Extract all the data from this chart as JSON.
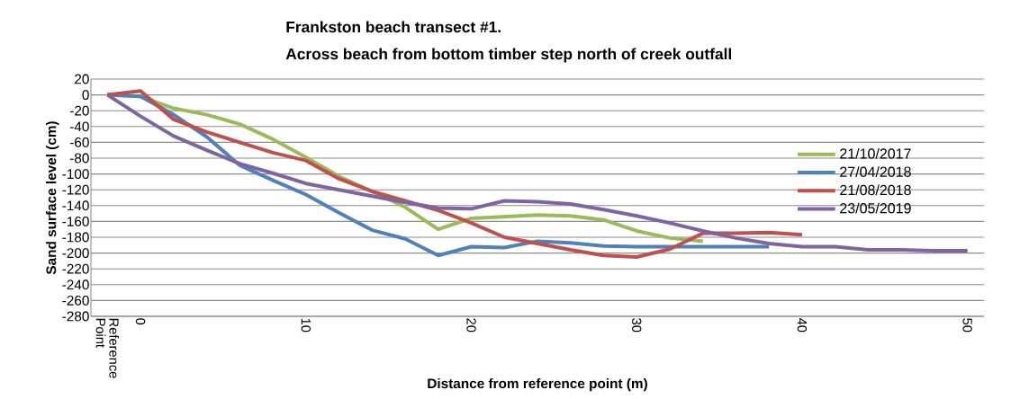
{
  "chart_data": {
    "type": "line",
    "title": "Frankston beach transect #1.",
    "subtitle": "Across beach from bottom timber step north of creek outfall",
    "xlabel": "Distance from reference point (m)",
    "ylabel": "Sand surface level (cm)",
    "categories": [
      "Reference Point",
      "0",
      null,
      null,
      null,
      null,
      "10",
      null,
      null,
      null,
      null,
      "20",
      null,
      null,
      null,
      null,
      "30",
      null,
      null,
      null,
      null,
      "40",
      null,
      null,
      null,
      null,
      "50"
    ],
    "series": [
      {
        "name": "21/10/2017",
        "color": "#9bbb59",
        "values": [
          0,
          -2,
          -17,
          -25,
          -37,
          -56,
          -79,
          -103,
          -122,
          -142,
          -170,
          -156,
          -154,
          -152,
          -153,
          -158,
          -172,
          -181,
          -185,
          null,
          null,
          null,
          null,
          null,
          null,
          null,
          null
        ]
      },
      {
        "name": "27/04/2018",
        "color": "#4f81bd",
        "values": [
          0,
          -2,
          -25,
          -53,
          -89,
          -108,
          -126,
          -149,
          -171,
          -182,
          -203,
          -192,
          -193,
          -185,
          -187,
          -191,
          -192,
          -192,
          -192,
          -192,
          -192,
          null,
          null,
          null,
          null,
          null,
          null
        ]
      },
      {
        "name": "21/08/2018",
        "color": "#c0504d",
        "values": [
          0,
          5,
          -31,
          -47,
          -60,
          -73,
          -83,
          -106,
          -122,
          -134,
          -146,
          -162,
          -180,
          -188,
          -196,
          -203,
          -205,
          -195,
          -175,
          -175,
          -174,
          -177,
          null,
          null,
          null,
          null,
          null
        ]
      },
      {
        "name": "23/05/2019",
        "color": "#8064a2",
        "values": [
          0,
          -27,
          -52,
          -70,
          -87,
          -99,
          -112,
          -120,
          -128,
          -136,
          -143,
          -144,
          -134,
          -135,
          -138,
          -145,
          -153,
          -162,
          -172,
          -181,
          -188,
          -192,
          -192,
          -196,
          -196,
          -197,
          -197
        ]
      }
    ],
    "ylim": [
      -280,
      20
    ],
    "yticks": [
      -280,
      -260,
      -240,
      -220,
      -200,
      -180,
      -160,
      -140,
      -120,
      -100,
      -80,
      -60,
      -40,
      -20,
      0,
      20
    ],
    "grid": "y",
    "legend": "right"
  }
}
